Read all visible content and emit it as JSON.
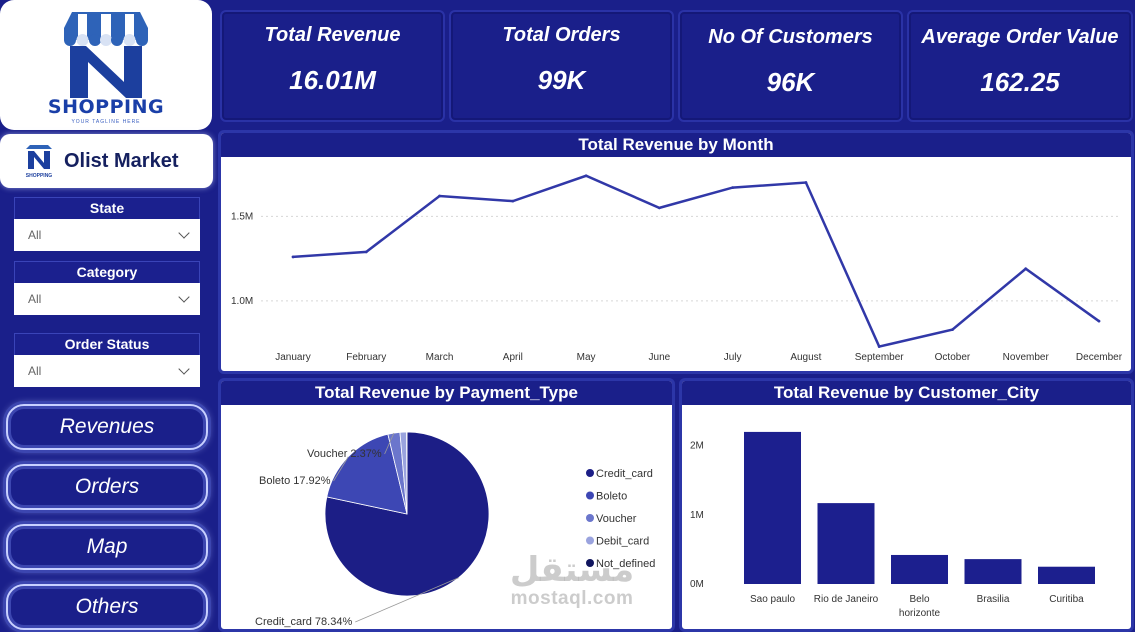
{
  "logo": {
    "text": "SHOPPING",
    "tagline": "YOUR TAGLINE HERE",
    "mark_letter": "N"
  },
  "brand": {
    "name": "Olist Market",
    "icon_text": "SHOPPING"
  },
  "filters": [
    {
      "label": "State",
      "value": "All"
    },
    {
      "label": "Category",
      "value": "All"
    },
    {
      "label": "Order Status",
      "value": "All"
    }
  ],
  "nav": [
    "Revenues",
    "Orders",
    "Map",
    "Others"
  ],
  "kpis": [
    {
      "title": "Total Revenue",
      "value": "16.01M"
    },
    {
      "title": "Total Orders",
      "value": "99K"
    },
    {
      "title": "No Of Customers",
      "value": "96K"
    },
    {
      "title": "Average Order Value",
      "value": "162.25"
    }
  ],
  "colors": {
    "navy": "#1a1f8a",
    "line": "#3138a8",
    "bar": "#1c1f8e"
  },
  "watermark": {
    "arabic": "مستقل",
    "latin": "mostaql.com"
  },
  "chart_data": [
    {
      "type": "line",
      "title": "Total Revenue by Month",
      "categories": [
        "January",
        "February",
        "March",
        "April",
        "May",
        "June",
        "July",
        "August",
        "September",
        "October",
        "November",
        "December"
      ],
      "values": [
        1.26,
        1.29,
        1.62,
        1.59,
        1.74,
        1.55,
        1.67,
        1.7,
        0.73,
        0.83,
        1.19,
        0.88
      ],
      "unit": "M",
      "yticks": [
        {
          "value": 1.0,
          "label": "1.0M"
        },
        {
          "value": 1.5,
          "label": "1.5M"
        }
      ],
      "ylim": [
        0.68,
        1.78
      ],
      "grid": true
    },
    {
      "type": "pie",
      "title": "Total Revenue by Payment_Type",
      "slices": [
        {
          "name": "Credit_card",
          "percent": 78.34,
          "label": "Credit_card 78.34%",
          "color": "#1c1e86"
        },
        {
          "name": "Boleto",
          "percent": 17.92,
          "label": "Boleto 17.92%",
          "color": "#3d47b4"
        },
        {
          "name": "Voucher",
          "percent": 2.37,
          "label": "Voucher 2.37%",
          "color": "#6b76cc"
        },
        {
          "name": "Debit_card",
          "percent": 1.3,
          "label": "",
          "color": "#9aa3de"
        },
        {
          "name": "Not_defined",
          "percent": 0.07,
          "label": "",
          "color": "#10155e"
        }
      ],
      "legend": [
        "Credit_card",
        "Boleto",
        "Voucher",
        "Debit_card",
        "Not_defined"
      ],
      "legend_position": "right"
    },
    {
      "type": "bar",
      "title": "Total Revenue by Customer_City",
      "categories": [
        "Sao paulo",
        "Rio de Janeiro",
        "Belo horizonte",
        "Brasilia",
        "Curitiba"
      ],
      "category_lines": [
        [
          "Sao paulo"
        ],
        [
          "Rio de Janeiro"
        ],
        [
          "Belo",
          "horizonte"
        ],
        [
          "Brasilia"
        ],
        [
          "Curitiba"
        ]
      ],
      "values": [
        2.2,
        1.17,
        0.42,
        0.36,
        0.25
      ],
      "unit": "M",
      "yticks": [
        {
          "value": 0,
          "label": "0M"
        },
        {
          "value": 1,
          "label": "1M"
        },
        {
          "value": 2,
          "label": "2M"
        }
      ],
      "ylim": [
        0,
        2.3
      ]
    }
  ]
}
